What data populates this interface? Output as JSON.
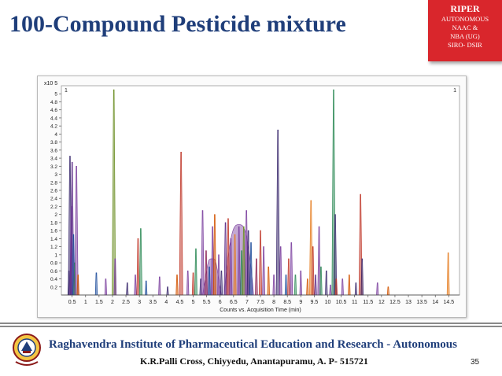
{
  "slide": {
    "title": "100-Compound Pesticide mixture",
    "page_number": "35"
  },
  "badge": {
    "title": "RIPER",
    "lines": [
      "AUTONOMOUS",
      "NAAC &",
      "NBA (UG)",
      "SIRO- DSIR"
    ]
  },
  "footer": {
    "institute": "Raghavendra Institute of Pharmaceutical Education and Research - Autonomous",
    "address": "K.R.Palli Cross, Chiyyedu, Anantapuramu, A. P- 515721"
  },
  "logo": {
    "icon": "institute-emblem-icon"
  },
  "chart_data": {
    "type": "chromatogram",
    "y_multiplier": "x10 5",
    "xlabel": "Counts vs. Acquisition Time (min)",
    "marker_left": "1",
    "marker_right": "1",
    "xlim": [
      0.1,
      14.9
    ],
    "ylim": [
      0,
      5.2
    ],
    "x_ticks": [
      "0.5",
      "1",
      "1.5",
      "2",
      "2.5",
      "3",
      "3.5",
      "4",
      "4.5",
      "5",
      "5.5",
      "6",
      "6.5",
      "7",
      "7.5",
      "8",
      "8.5",
      "9",
      "9.5",
      "10",
      "10.5",
      "11",
      "11.5",
      "12",
      "12.5",
      "13",
      "13.5",
      "14",
      "14.5"
    ],
    "y_ticks": [
      "0.2",
      "0.4",
      "0.6",
      "0.8",
      "1",
      "1.2",
      "1.4",
      "1.6",
      "1.8",
      "2",
      "2.2",
      "2.4",
      "2.6",
      "2.8",
      "3",
      "3.2",
      "3.4",
      "3.6",
      "3.8",
      "4",
      "4.2",
      "4.4",
      "4.6",
      "4.8",
      "5"
    ],
    "grid": false,
    "colors": [
      "#3b2a6e",
      "#7b3f9e",
      "#c0392b",
      "#d35400",
      "#2e8b57",
      "#1f4e9c",
      "#8b2252",
      "#e67e22",
      "#6b8e23",
      "#5b2a86"
    ],
    "peaks": [
      {
        "t": 0.38,
        "h": 0.6,
        "c": 0
      },
      {
        "t": 0.42,
        "h": 3.45,
        "c": 0
      },
      {
        "t": 0.47,
        "h": 2.2,
        "c": 1
      },
      {
        "t": 0.5,
        "h": 3.3,
        "c": 9
      },
      {
        "t": 0.55,
        "h": 1.5,
        "c": 5
      },
      {
        "t": 0.6,
        "h": 0.8,
        "c": 4
      },
      {
        "t": 0.66,
        "h": 3.2,
        "c": 1
      },
      {
        "t": 0.72,
        "h": 0.5,
        "c": 3
      },
      {
        "t": 1.4,
        "h": 0.55,
        "c": 5
      },
      {
        "t": 1.75,
        "h": 0.4,
        "c": 1
      },
      {
        "t": 2.05,
        "h": 5.1,
        "c": 8
      },
      {
        "t": 2.1,
        "h": 0.9,
        "c": 1
      },
      {
        "t": 2.55,
        "h": 0.3,
        "c": 0
      },
      {
        "t": 2.85,
        "h": 0.5,
        "c": 1
      },
      {
        "t": 2.95,
        "h": 1.4,
        "c": 2
      },
      {
        "t": 3.05,
        "h": 1.65,
        "c": 4
      },
      {
        "t": 3.25,
        "h": 0.35,
        "c": 5
      },
      {
        "t": 3.75,
        "h": 0.45,
        "c": 1
      },
      {
        "t": 4.05,
        "h": 0.2,
        "c": 0
      },
      {
        "t": 4.4,
        "h": 0.5,
        "c": 3
      },
      {
        "t": 4.55,
        "h": 3.55,
        "c": 2
      },
      {
        "t": 4.8,
        "h": 0.6,
        "c": 1
      },
      {
        "t": 5.0,
        "h": 0.55,
        "c": 2
      },
      {
        "t": 5.1,
        "h": 1.15,
        "c": 4
      },
      {
        "t": 5.28,
        "h": 0.4,
        "c": 0
      },
      {
        "t": 5.35,
        "h": 2.1,
        "c": 1
      },
      {
        "t": 5.48,
        "h": 1.1,
        "c": 6
      },
      {
        "t": 5.6,
        "h": 0.7,
        "c": 5
      },
      {
        "t": 5.72,
        "h": 1.7,
        "c": 1
      },
      {
        "t": 5.8,
        "h": 2.0,
        "c": 3
      },
      {
        "t": 5.95,
        "h": 1.0,
        "c": 1
      },
      {
        "t": 6.05,
        "h": 0.6,
        "c": 0
      },
      {
        "t": 6.2,
        "h": 1.8,
        "c": 9
      },
      {
        "t": 6.3,
        "h": 1.9,
        "c": 2
      },
      {
        "t": 6.4,
        "h": 1.4,
        "c": 1
      },
      {
        "t": 6.55,
        "h": 1.5,
        "c": 7
      },
      {
        "t": 6.7,
        "h": 1.7,
        "c": 1
      },
      {
        "t": 6.8,
        "h": 1.1,
        "c": 4
      },
      {
        "t": 6.88,
        "h": 1.7,
        "c": 8
      },
      {
        "t": 6.98,
        "h": 2.1,
        "c": 1
      },
      {
        "t": 7.05,
        "h": 1.6,
        "c": 0
      },
      {
        "t": 7.15,
        "h": 1.3,
        "c": 5
      },
      {
        "t": 7.35,
        "h": 0.9,
        "c": 6
      },
      {
        "t": 7.5,
        "h": 1.6,
        "c": 2
      },
      {
        "t": 7.62,
        "h": 1.2,
        "c": 1
      },
      {
        "t": 7.8,
        "h": 0.7,
        "c": 3
      },
      {
        "t": 8.0,
        "h": 0.5,
        "c": 1
      },
      {
        "t": 8.15,
        "h": 4.1,
        "c": 0
      },
      {
        "t": 8.25,
        "h": 1.2,
        "c": 1
      },
      {
        "t": 8.45,
        "h": 0.5,
        "c": 5
      },
      {
        "t": 8.55,
        "h": 0.9,
        "c": 2
      },
      {
        "t": 8.65,
        "h": 1.3,
        "c": 1
      },
      {
        "t": 8.8,
        "h": 0.5,
        "c": 4
      },
      {
        "t": 9.0,
        "h": 0.6,
        "c": 1
      },
      {
        "t": 9.25,
        "h": 0.4,
        "c": 3
      },
      {
        "t": 9.38,
        "h": 2.35,
        "c": 7
      },
      {
        "t": 9.45,
        "h": 1.2,
        "c": 2
      },
      {
        "t": 9.55,
        "h": 0.5,
        "c": 9
      },
      {
        "t": 9.68,
        "h": 1.7,
        "c": 1
      },
      {
        "t": 9.75,
        "h": 0.7,
        "c": 4
      },
      {
        "t": 9.95,
        "h": 0.6,
        "c": 0
      },
      {
        "t": 10.1,
        "h": 0.25,
        "c": 1
      },
      {
        "t": 10.22,
        "h": 5.1,
        "c": 4
      },
      {
        "t": 10.28,
        "h": 2.0,
        "c": 0
      },
      {
        "t": 10.32,
        "h": 0.4,
        "c": 2
      },
      {
        "t": 10.55,
        "h": 0.4,
        "c": 1
      },
      {
        "t": 10.8,
        "h": 0.5,
        "c": 3
      },
      {
        "t": 11.05,
        "h": 0.3,
        "c": 0
      },
      {
        "t": 11.22,
        "h": 2.5,
        "c": 2
      },
      {
        "t": 11.28,
        "h": 0.9,
        "c": 0
      },
      {
        "t": 11.85,
        "h": 0.3,
        "c": 1
      },
      {
        "t": 12.25,
        "h": 0.2,
        "c": 3
      },
      {
        "t": 14.48,
        "h": 1.05,
        "c": 7
      }
    ],
    "broad_humps": [
      {
        "t": 6.7,
        "w": 0.55,
        "h": 1.75,
        "c": 1
      },
      {
        "t": 5.7,
        "w": 0.35,
        "h": 0.9,
        "c": 1
      }
    ]
  }
}
